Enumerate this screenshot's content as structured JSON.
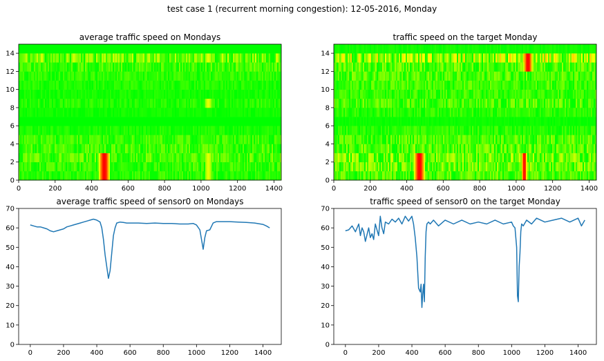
{
  "suptitle": "test case 1 (recurrent morning congestion): 12-05-2016, Monday",
  "colors": {
    "line": "#1f77b4",
    "cmap": [
      "#ff0000",
      "#ffff00",
      "#00ff00"
    ]
  },
  "chart_data": [
    {
      "type": "heatmap",
      "title": "average traffic speed on Mondays",
      "xlim": [
        0,
        1440
      ],
      "ylim": [
        0,
        15
      ],
      "xticks": [
        0,
        200,
        400,
        600,
        800,
        1000,
        1200,
        1400
      ],
      "yticks": [
        0,
        2,
        4,
        6,
        8,
        10,
        12,
        14
      ],
      "colormap": "red-yellow-green (low speed = red)",
      "rows": 15,
      "cols": 1440,
      "row_base": [
        0.92,
        0.9,
        0.86,
        0.88,
        0.9,
        0.95,
        1.0,
        0.97,
        0.93,
        0.96,
        0.94,
        0.92,
        0.88,
        0.8,
        1.0
      ],
      "congestion": [
        {
          "rows": [
            0,
            1,
            2
          ],
          "x": [
            440,
            500
          ],
          "min_speed_frac": 0.0
        },
        {
          "rows": [
            0,
            1,
            2,
            8,
            13
          ],
          "x": [
            1020,
            1060
          ],
          "min_speed_frac": 0.55
        }
      ]
    },
    {
      "type": "heatmap",
      "title": "traffic speed on the target Monday",
      "xlim": [
        0,
        1440
      ],
      "ylim": [
        0,
        15
      ],
      "xticks": [
        0,
        200,
        400,
        600,
        800,
        1000,
        1200,
        1400
      ],
      "yticks": [
        0,
        2,
        4,
        6,
        8,
        10,
        12,
        14
      ],
      "colormap": "red-yellow-green (low speed = red)",
      "rows": 15,
      "cols": 1440,
      "row_base": [
        0.86,
        0.82,
        0.8,
        0.84,
        0.86,
        0.92,
        0.98,
        0.92,
        0.86,
        0.9,
        0.88,
        0.86,
        0.84,
        0.7,
        0.97
      ],
      "congestion": [
        {
          "rows": [
            0,
            1,
            2
          ],
          "x": [
            440,
            500
          ],
          "min_speed_frac": 0.0
        },
        {
          "rows": [
            0,
            1,
            2
          ],
          "x": [
            1030,
            1060
          ],
          "min_speed_frac": 0.0
        },
        {
          "rows": [
            12,
            13
          ],
          "x": [
            1040,
            1090
          ],
          "min_speed_frac": 0.0
        }
      ]
    },
    {
      "type": "line",
      "title": "average traffic speed of sensor0 on Mondays",
      "xlim": [
        -70,
        1510
      ],
      "ylim": [
        0,
        70
      ],
      "xticks": [
        0,
        200,
        400,
        600,
        800,
        1000,
        1200,
        1400
      ],
      "yticks": [
        0,
        10,
        20,
        30,
        40,
        50,
        60,
        70
      ],
      "series": [
        {
          "x": [
            0,
            20,
            40,
            60,
            80,
            100,
            120,
            140,
            160,
            180,
            200,
            220,
            240,
            260,
            280,
            300,
            320,
            340,
            360,
            380,
            400,
            420,
            430,
            440,
            450,
            460,
            470,
            480,
            490,
            500,
            510,
            520,
            540,
            560,
            580,
            600,
            650,
            700,
            750,
            800,
            850,
            900,
            950,
            980,
            1000,
            1020,
            1030,
            1040,
            1050,
            1060,
            1080,
            1100,
            1120,
            1150,
            1200,
            1250,
            1300,
            1350,
            1400,
            1420,
            1440
          ],
          "y": [
            61.5,
            61.0,
            60.5,
            60.5,
            60.0,
            59.5,
            58.5,
            58.0,
            58.5,
            59.0,
            59.5,
            60.5,
            61.0,
            61.5,
            62.0,
            62.5,
            63.0,
            63.5,
            64.0,
            64.5,
            64.0,
            63.0,
            60.0,
            54.0,
            46.0,
            40.0,
            34.0,
            38.0,
            47.0,
            56.0,
            60.0,
            62.5,
            63.0,
            62.8,
            62.5,
            62.5,
            62.5,
            62.3,
            62.5,
            62.3,
            62.3,
            62.0,
            62.0,
            62.3,
            61.5,
            59.0,
            54.0,
            49.0,
            55.0,
            58.5,
            59.0,
            62.5,
            63.2,
            63.2,
            63.2,
            63.0,
            62.8,
            62.5,
            61.8,
            61.0,
            60.0
          ]
        }
      ]
    },
    {
      "type": "line",
      "title": "traffic speed of sensor0 on the target Monday",
      "xlim": [
        -70,
        1510
      ],
      "ylim": [
        0,
        70
      ],
      "xticks": [
        0,
        200,
        400,
        600,
        800,
        1000,
        1200,
        1400
      ],
      "yticks": [
        0,
        10,
        20,
        30,
        40,
        50,
        60,
        70
      ],
      "series": [
        {
          "x": [
            0,
            20,
            40,
            60,
            80,
            90,
            100,
            110,
            120,
            140,
            150,
            160,
            170,
            180,
            200,
            210,
            220,
            230,
            240,
            260,
            280,
            300,
            320,
            340,
            360,
            380,
            400,
            410,
            420,
            430,
            440,
            450,
            455,
            460,
            465,
            470,
            475,
            480,
            485,
            490,
            500,
            510,
            530,
            560,
            600,
            650,
            700,
            750,
            800,
            850,
            900,
            950,
            1000,
            1010,
            1020,
            1030,
            1035,
            1040,
            1045,
            1050,
            1055,
            1060,
            1070,
            1090,
            1120,
            1150,
            1200,
            1250,
            1300,
            1350,
            1400,
            1420,
            1440
          ],
          "y": [
            58.5,
            59.0,
            61.0,
            58.0,
            62.0,
            56.0,
            60.0,
            58.0,
            53.0,
            60.0,
            55.0,
            57.0,
            54.0,
            62.0,
            56.0,
            66.0,
            60.0,
            57.0,
            63.0,
            62.0,
            64.5,
            63.0,
            65.0,
            62.0,
            66.0,
            63.5,
            66.0,
            62.0,
            55.0,
            45.0,
            29.0,
            27.0,
            31.0,
            19.0,
            26.0,
            31.0,
            22.0,
            45.0,
            58.0,
            62.0,
            63.0,
            62.0,
            64.0,
            61.0,
            64.0,
            62.0,
            64.0,
            62.0,
            63.0,
            62.0,
            64.0,
            62.0,
            63.0,
            61.0,
            60.0,
            50.0,
            25.0,
            22.0,
            40.0,
            47.0,
            58.0,
            62.0,
            61.0,
            64.0,
            62.0,
            65.0,
            63.0,
            64.0,
            65.0,
            63.0,
            65.0,
            61.0,
            64.0
          ]
        }
      ]
    }
  ]
}
